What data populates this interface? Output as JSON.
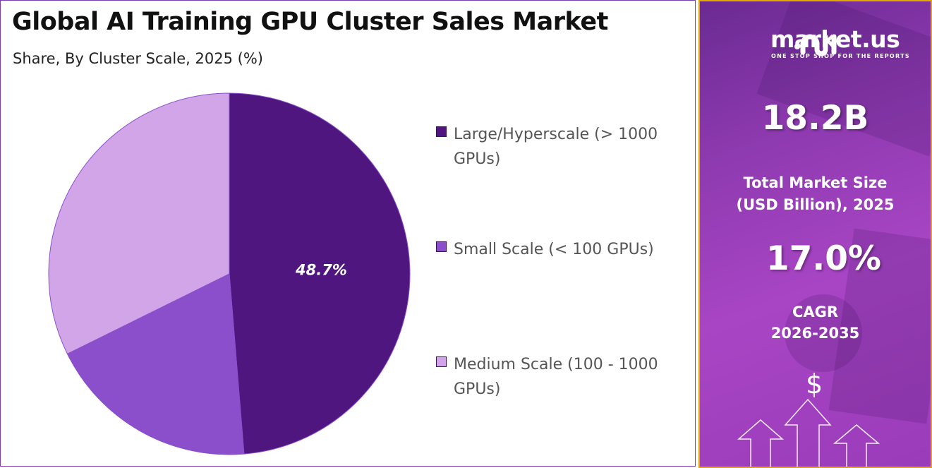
{
  "header": {
    "title": "Global AI Training GPU Cluster Sales Market",
    "subtitle": "Share, By Cluster Scale, 2025 (%)"
  },
  "chart_data": {
    "type": "pie",
    "title": "Global AI Training GPU Cluster Sales Market",
    "subtitle": "Share, By Cluster Scale, 2025 (%)",
    "categories": [
      "Large/Hyperscale (> 1000 GPUs)",
      "Small Scale (< 100 GPUs)",
      "Medium Scale (100 - 1000 GPUs)"
    ],
    "values": [
      48.7,
      19.0,
      32.3
    ],
    "colors": [
      "#4f1680",
      "#8b4fcb",
      "#d2a5e8"
    ],
    "data_labels": [
      "48.7%",
      "",
      ""
    ],
    "start_angle": "top, clockwise",
    "legend_position": "right"
  },
  "sidebar": {
    "brand": "market.us",
    "tagline": "ONE STOP SHOP FOR THE REPORTS",
    "market_size": "18.2B",
    "market_size_label_1": "Total Market Size",
    "market_size_label_2": "(USD Billion), 2025",
    "cagr": "17.0%",
    "cagr_label_1": "CAGR",
    "cagr_label_2": "2026-2035",
    "currency_symbol": "$",
    "accent_border": "#e0a800"
  }
}
